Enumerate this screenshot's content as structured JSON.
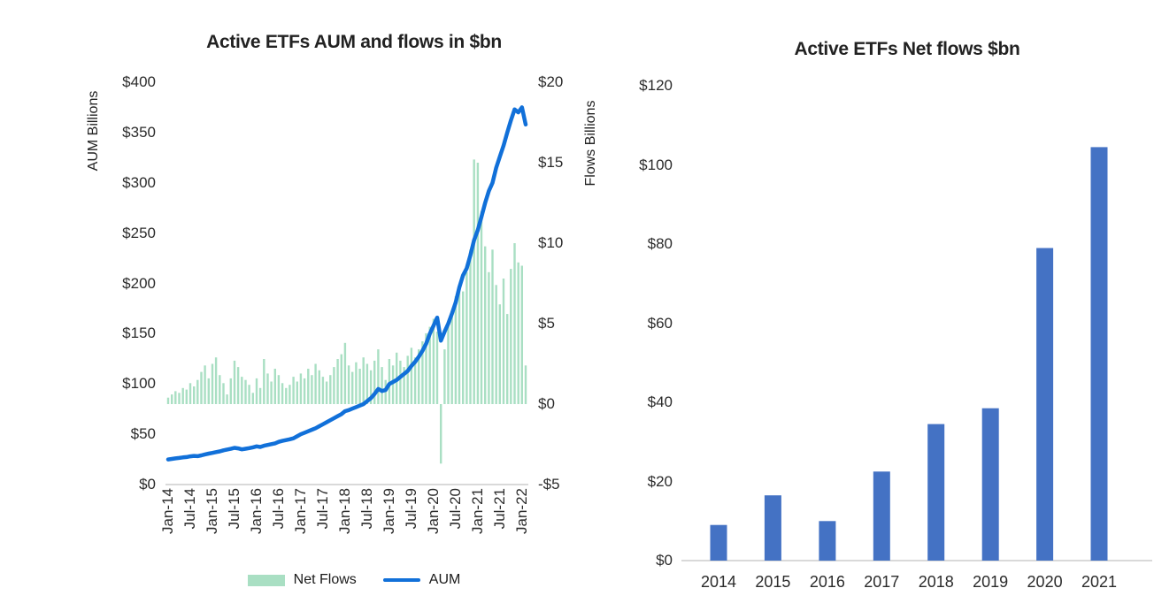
{
  "colors": {
    "background": "#ffffff",
    "text": "#2b2b2b",
    "axis_line": "#d9d9d9",
    "aum_line": "#1170d9",
    "net_flows_bar": "#a9dfc3",
    "annual_bar": "#4472c4"
  },
  "chart_data": [
    {
      "type": "combo",
      "title": "Active ETFs AUM and flows in $bn",
      "legend_position": "bottom",
      "grid": false,
      "x": [
        "Jan-14",
        "Feb-14",
        "Mar-14",
        "Apr-14",
        "May-14",
        "Jun-14",
        "Jul-14",
        "Aug-14",
        "Sep-14",
        "Oct-14",
        "Nov-14",
        "Dec-14",
        "Jan-15",
        "Feb-15",
        "Mar-15",
        "Apr-15",
        "May-15",
        "Jun-15",
        "Jul-15",
        "Aug-15",
        "Sep-15",
        "Oct-15",
        "Nov-15",
        "Dec-15",
        "Jan-16",
        "Feb-16",
        "Mar-16",
        "Apr-16",
        "May-16",
        "Jun-16",
        "Jul-16",
        "Aug-16",
        "Sep-16",
        "Oct-16",
        "Nov-16",
        "Dec-16",
        "Jan-17",
        "Feb-17",
        "Mar-17",
        "Apr-17",
        "May-17",
        "Jun-17",
        "Jul-17",
        "Aug-17",
        "Sep-17",
        "Oct-17",
        "Nov-17",
        "Dec-17",
        "Jan-18",
        "Feb-18",
        "Mar-18",
        "Apr-18",
        "May-18",
        "Jun-18",
        "Jul-18",
        "Aug-18",
        "Sep-18",
        "Oct-18",
        "Nov-18",
        "Dec-18",
        "Jan-19",
        "Feb-19",
        "Mar-19",
        "Apr-19",
        "May-19",
        "Jun-19",
        "Jul-19",
        "Aug-19",
        "Sep-19",
        "Oct-19",
        "Nov-19",
        "Dec-19",
        "Jan-20",
        "Feb-20",
        "Mar-20",
        "Apr-20",
        "May-20",
        "Jun-20",
        "Jul-20",
        "Aug-20",
        "Sep-20",
        "Oct-20",
        "Nov-20",
        "Dec-20",
        "Jan-21",
        "Feb-21",
        "Mar-21",
        "Apr-21",
        "May-21",
        "Jun-21",
        "Jul-21",
        "Aug-21",
        "Sep-21",
        "Oct-21",
        "Nov-21",
        "Dec-21",
        "Jan-22",
        "Feb-22"
      ],
      "x_tick_labels": [
        "Jan-14",
        "Jul-14",
        "Jan-15",
        "Jul-15",
        "Jan-16",
        "Jul-16",
        "Jan-17",
        "Jul-17",
        "Jan-18",
        "Jul-18",
        "Jan-19",
        "Jul-19",
        "Jan-20",
        "Jul-20",
        "Jan-21",
        "Jul-21",
        "Jan-22"
      ],
      "series": [
        {
          "name": "Net Flows",
          "type": "bar",
          "axis": "right",
          "color": "#a9dfc3",
          "values": [
            0.4,
            0.6,
            0.8,
            0.7,
            1.0,
            0.9,
            1.3,
            1.1,
            1.5,
            2.0,
            2.4,
            1.6,
            2.5,
            2.9,
            1.8,
            1.3,
            0.6,
            1.6,
            2.7,
            2.3,
            1.7,
            1.5,
            1.2,
            0.7,
            1.6,
            1.0,
            2.8,
            1.9,
            1.4,
            2.2,
            1.8,
            1.3,
            1.0,
            1.2,
            1.7,
            1.4,
            1.9,
            1.6,
            2.2,
            1.8,
            2.5,
            2.1,
            1.7,
            1.4,
            1.8,
            2.3,
            2.8,
            3.1,
            3.8,
            2.4,
            2.0,
            2.6,
            2.2,
            2.9,
            2.5,
            2.1,
            2.7,
            3.4,
            2.3,
            1.5,
            2.8,
            2.4,
            3.2,
            2.7,
            2.3,
            3.0,
            3.5,
            2.9,
            3.4,
            3.9,
            4.4,
            4.8,
            5.3,
            4.5,
            -3.7,
            3.4,
            5.0,
            5.8,
            6.7,
            7.4,
            7.0,
            8.2,
            9.6,
            15.2,
            15.0,
            12.0,
            9.8,
            8.2,
            9.6,
            7.4,
            6.2,
            7.8,
            5.6,
            8.4,
            10.0,
            8.8,
            8.6,
            2.4
          ]
        },
        {
          "name": "AUM",
          "type": "line",
          "axis": "left",
          "color": "#1170d9",
          "values": [
            25,
            25.5,
            26,
            26.5,
            27,
            27.3,
            28,
            28.5,
            28.2,
            29,
            30,
            30.8,
            31.5,
            32.3,
            33,
            34,
            34.8,
            35.5,
            36.5,
            36,
            35,
            35.6,
            36.2,
            37,
            38,
            37.4,
            38.6,
            39.4,
            40.2,
            41,
            42.5,
            43.4,
            44.2,
            45,
            46,
            48,
            50,
            51.5,
            53,
            54.5,
            56,
            58,
            60,
            62,
            64,
            66,
            68,
            70,
            73,
            74,
            75.5,
            77,
            78.5,
            80,
            83,
            86,
            90,
            95,
            93,
            94,
            100,
            102,
            104,
            107,
            110,
            113,
            118,
            122,
            127,
            133,
            140,
            150,
            158,
            166,
            143,
            152,
            160,
            170,
            181,
            196,
            208,
            215,
            228,
            243,
            253,
            266,
            280,
            292,
            300,
            315,
            326,
            337,
            350,
            362,
            373,
            370,
            375,
            358
          ]
        }
      ],
      "left_axis": {
        "label": "AUM Billions",
        "min": 0,
        "max": 400,
        "tick_values": [
          0,
          50,
          100,
          150,
          200,
          250,
          300,
          350,
          400
        ],
        "tick_labels": [
          "$0",
          "$50",
          "$100",
          "$150",
          "$200",
          "$250",
          "$300",
          "$350",
          "$400"
        ]
      },
      "right_axis": {
        "label": "Flows Billions",
        "min": -5,
        "max": 20,
        "tick_values": [
          -5,
          0,
          5,
          10,
          15,
          20
        ],
        "tick_labels": [
          "-$5",
          "$0",
          "$5",
          "$10",
          "$15",
          "$20"
        ]
      }
    },
    {
      "type": "bar",
      "title": "Active ETFs Net flows $bn",
      "categories": [
        "2014",
        "2015",
        "2016",
        "2017",
        "2018",
        "2019",
        "2020",
        "2021"
      ],
      "values": [
        9,
        16.5,
        10,
        22.5,
        34.5,
        38.5,
        79,
        104.5
      ],
      "xlabel": "",
      "ylabel": "",
      "ylim": [
        0,
        120
      ],
      "y_tick_values": [
        0,
        20,
        40,
        60,
        80,
        100,
        120
      ],
      "y_tick_labels": [
        "$0",
        "$20",
        "$40",
        "$60",
        "$80",
        "$100",
        "$120"
      ],
      "bar_color": "#4472c4",
      "grid": false
    }
  ]
}
